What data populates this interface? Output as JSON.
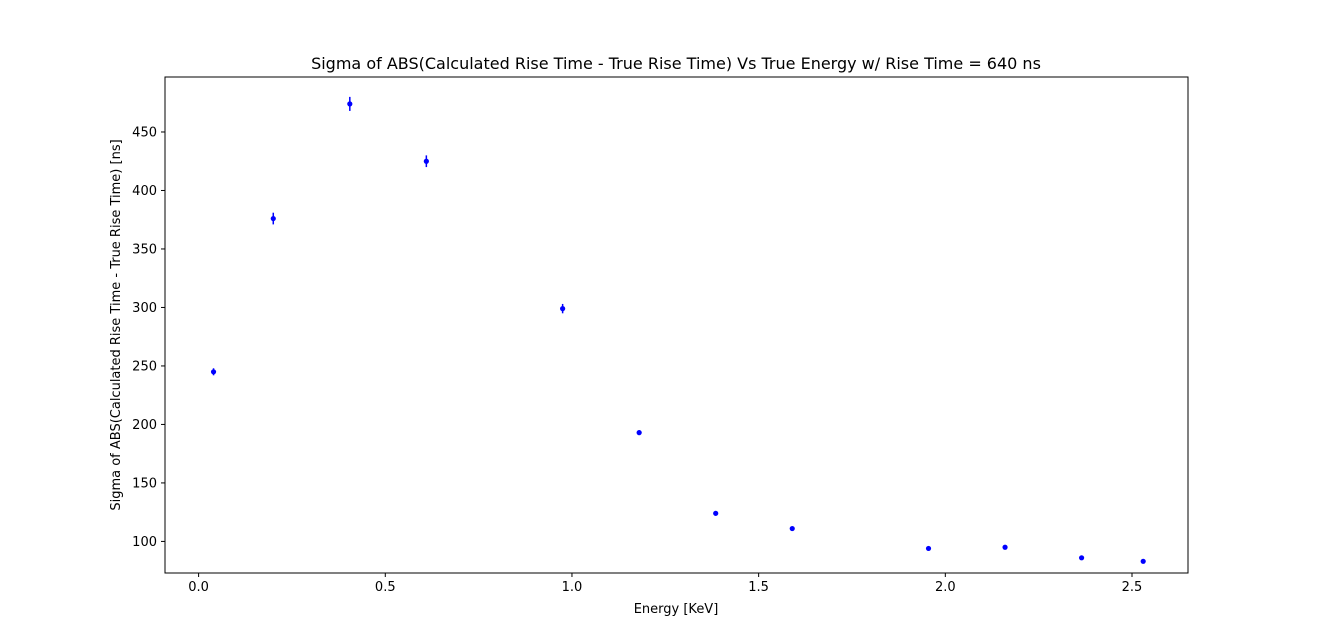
{
  "chart_data": {
    "type": "scatter",
    "title": "Sigma of ABS(Calculated Rise Time - True Rise Time) Vs True Energy w/ Rise Time = 640 ns",
    "xlabel": "Energy [KeV]",
    "ylabel": "Sigma of ABS(Calculated Rise Time - True Rise Time) [ns]",
    "xlim": [
      -0.09,
      2.65
    ],
    "ylim": [
      73,
      497
    ],
    "xticks": [
      0.0,
      0.5,
      1.0,
      1.5,
      2.0,
      2.5
    ],
    "xtick_labels": [
      "0.0",
      "0.5",
      "1.0",
      "1.5",
      "2.0",
      "2.5"
    ],
    "yticks": [
      100,
      150,
      200,
      250,
      300,
      350,
      400,
      450
    ],
    "ytick_labels": [
      "100",
      "150",
      "200",
      "250",
      "300",
      "350",
      "400",
      "450"
    ],
    "grid": false,
    "series": [
      {
        "color": "#0000ff",
        "marker": "point-with-errorbar",
        "x": [
          0.04,
          0.2,
          0.405,
          0.61,
          0.975,
          1.18,
          1.385,
          1.59,
          1.955,
          2.16,
          2.365,
          2.53
        ],
        "y": [
          245,
          376,
          474,
          425,
          299,
          193,
          124,
          111,
          94,
          95,
          86,
          83
        ],
        "yerr": [
          3,
          5,
          6,
          5,
          4,
          2,
          1,
          1,
          1,
          1,
          1,
          1
        ]
      }
    ]
  }
}
